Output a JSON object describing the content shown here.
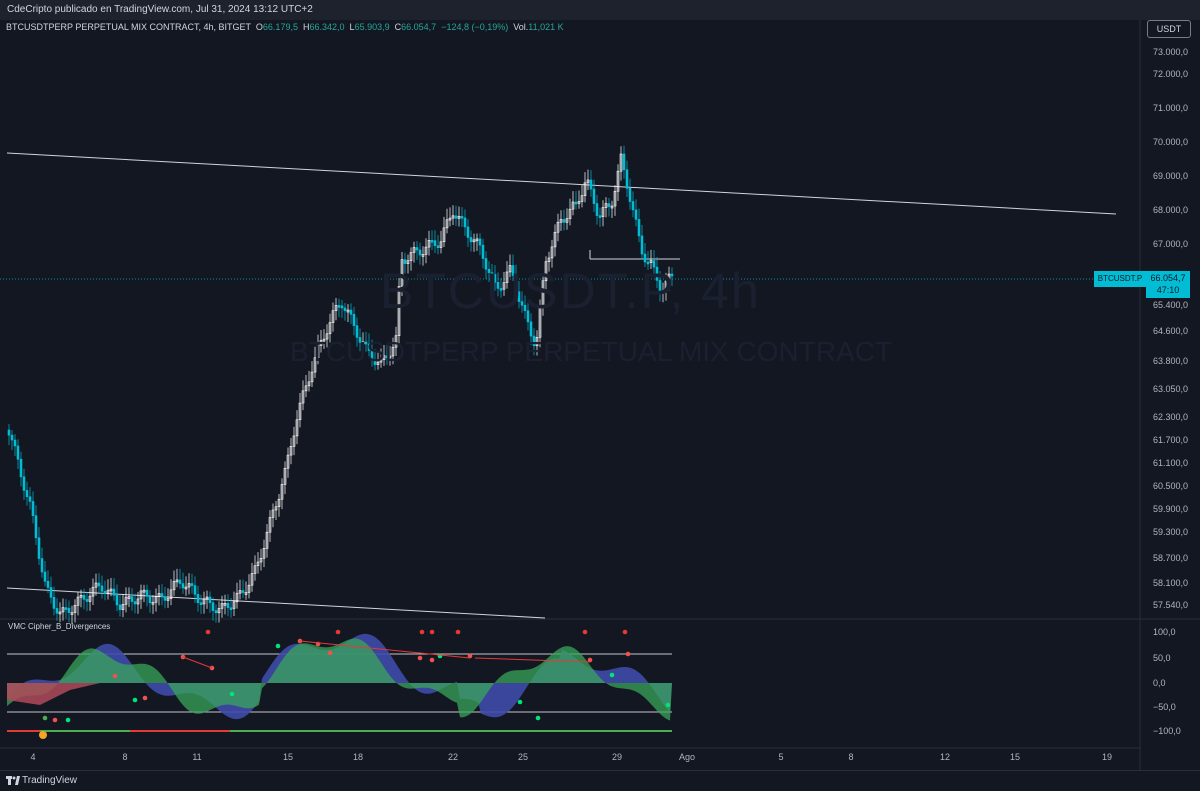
{
  "publisher": "CdeCripto publicado en TradingView.com, Jul 31, 2024 13:12 UTC+2",
  "symbol_header": {
    "name": "BTCUSDTPERP PERPETUAL MIX CONTRACT, 4h, BITGET",
    "o_label": "O",
    "o_value": "66.179,5",
    "h_label": "H",
    "h_value": "66.342,0",
    "l_label": "L",
    "l_value": "65.903,9",
    "c_label": "C",
    "c_value": "66.054,7",
    "change": "−124,8 (−0,19%)",
    "vol_label": "Vol.",
    "vol_value": "11,021 K"
  },
  "currency_button": "USDT",
  "watermark": {
    "line1": "BTCUSDT.P, 4h",
    "line2": "BTCUSDTPERP PERPETUAL MIX CONTRACT"
  },
  "price_axis": [
    "73.000,0",
    "72.000,0",
    "71.000,0",
    "70.000,0",
    "69.000,0",
    "68.000,0",
    "67.000,0",
    "66.200,0",
    "65.400,0",
    "64.600,0",
    "63.800,0",
    "63.050,0",
    "62.300,0",
    "61.700,0",
    "61.100,0",
    "60.500,0",
    "59.900,0",
    "59.300,0",
    "58.700,0",
    "58.100,0",
    "57.540,0"
  ],
  "last_price": {
    "symbol": "BTCUSDT.P",
    "price": "66.054,7",
    "countdown": "47:10"
  },
  "indicator": {
    "title": "VMC Cipher_B_Divergences",
    "axis": [
      "100,0",
      "50,0",
      "0,0",
      "−50,0",
      "−100,0"
    ]
  },
  "time_axis": [
    "4",
    "8",
    "11",
    "15",
    "18",
    "22",
    "25",
    "29",
    "Ago",
    "5",
    "8",
    "12",
    "15",
    "19"
  ],
  "footer": {
    "brand": "TradingView"
  },
  "colors": {
    "background": "#131722",
    "up_candle": "#ffffff",
    "down_candle": "#00bcd4",
    "accent": "#00bcd4",
    "wave_green": "#3aa65a",
    "wave_blue": "#3f4ba8",
    "wave_red": "#b04a5a"
  }
}
